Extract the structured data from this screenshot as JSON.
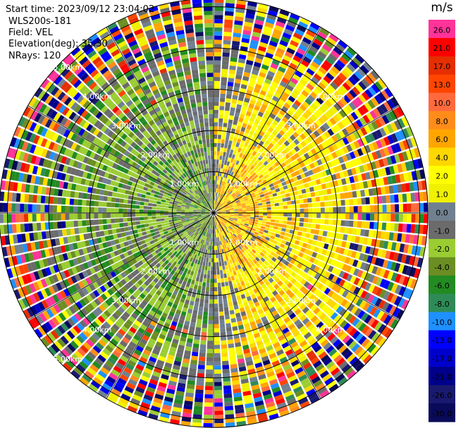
{
  "info": {
    "start_time": "Start time: 2023/09/12 23:04:02",
    "instrument": "WLS200s-181",
    "field": "Field: VEL",
    "elevation": "Elevation(deg): 35.30",
    "nrays": "NRays: 120"
  },
  "chart_data": {
    "type": "heatmap",
    "projection": "polar-ppi",
    "field": "VEL",
    "n_rays": 120,
    "range_rings_km": [
      1.0,
      2.0,
      3.0,
      4.0,
      5.0
    ],
    "max_range_km": 5.2,
    "ring_labels": [
      {
        "text": "1.00km",
        "ring": 1,
        "az": 315
      },
      {
        "text": "1.00km",
        "ring": 1,
        "az": 45
      },
      {
        "text": "1.00km",
        "ring": 1,
        "az": 225
      },
      {
        "text": "1.00km",
        "ring": 1,
        "az": 135
      },
      {
        "text": "2.00km",
        "ring": 2,
        "az": 315
      },
      {
        "text": "2.00km",
        "ring": 2,
        "az": 45
      },
      {
        "text": "2.00km",
        "ring": 2,
        "az": 225
      },
      {
        "text": "2.00km",
        "ring": 2,
        "az": 135
      },
      {
        "text": "3.00km",
        "ring": 3,
        "az": 315
      },
      {
        "text": "3.00km",
        "ring": 3,
        "az": 45
      },
      {
        "text": "3.00km",
        "ring": 3,
        "az": 225
      },
      {
        "text": "3.00km",
        "ring": 3,
        "az": 135
      },
      {
        "text": "4.00km",
        "ring": 4,
        "az": 315
      },
      {
        "text": "4.00km",
        "ring": 4,
        "az": 45
      },
      {
        "text": "4.00km",
        "ring": 4,
        "az": 225
      },
      {
        "text": "4.00km",
        "ring": 4,
        "az": 135
      },
      {
        "text": "5.00km",
        "ring": 5,
        "az": 315
      },
      {
        "text": "5.00km",
        "ring": 5,
        "az": 225
      }
    ],
    "colorbar": {
      "unit": "m/s",
      "ticks": [
        "26.0",
        "21.0",
        "17.0",
        "13.0",
        "10.0",
        "8.0",
        "6.0",
        "4.0",
        "2.0",
        "1.0",
        "0.0",
        "-1.0",
        "-2.0",
        "-4.0",
        "-6.0",
        "-8.0",
        "-10.0",
        "-13.0",
        "-17.0",
        "-21.0",
        "-26.0",
        "-30.0"
      ],
      "colors": [
        "#ff3399",
        "#ff0000",
        "#e62e00",
        "#ff4500",
        "#ff6a3d",
        "#ff8c1a",
        "#ffa500",
        "#ffd700",
        "#ffff00",
        "#f0f000",
        "#708090",
        "#6b6b6b",
        "#9acd32",
        "#6b8e23",
        "#228b22",
        "#2e8b57",
        "#1e90ff",
        "#0000ff",
        "#0000cd",
        "#00008b",
        "#191970",
        "#0a0a5a"
      ]
    }
  }
}
